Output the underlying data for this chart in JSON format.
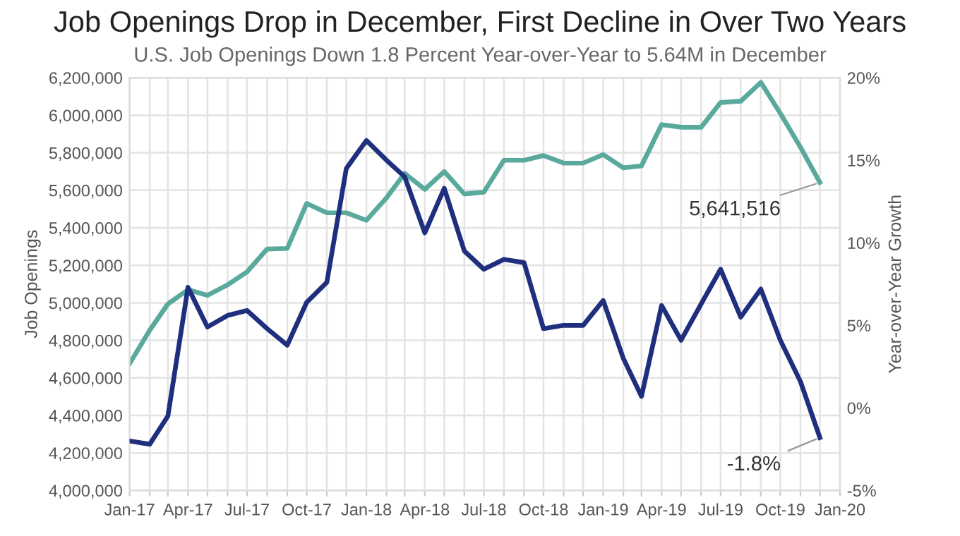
{
  "chart_data": {
    "type": "line",
    "title": "Job Openings Drop in December, First Decline in Over Two Years",
    "subtitle": "U.S. Job Openings Down 1.8 Percent Year-over-Year to 5.64M in December",
    "ylabel": "Job Openings",
    "y2label": "Year-over-Year Growth",
    "x": [
      "2017-01",
      "2017-02",
      "2017-03",
      "2017-04",
      "2017-05",
      "2017-06",
      "2017-07",
      "2017-08",
      "2017-09",
      "2017-10",
      "2017-11",
      "2017-12",
      "2018-01",
      "2018-02",
      "2018-03",
      "2018-04",
      "2018-05",
      "2018-06",
      "2018-07",
      "2018-08",
      "2018-09",
      "2018-10",
      "2018-11",
      "2018-12",
      "2019-01",
      "2019-02",
      "2019-03",
      "2019-04",
      "2019-05",
      "2019-06",
      "2019-07",
      "2019-08",
      "2019-09",
      "2019-10",
      "2019-11",
      "2019-12"
    ],
    "series": [
      {
        "color": "#5aa99d",
        "values": [
          4676000,
          4854000,
          4994000,
          5070000,
          5040000,
          5096000,
          5165000,
          5287000,
          5290000,
          5530000,
          5480000,
          5480000,
          5440000,
          5560000,
          5690000,
          5605000,
          5700000,
          5580000,
          5590000,
          5760000,
          5760000,
          5785000,
          5745000,
          5745000,
          5790000,
          5720000,
          5730000,
          5950000,
          5936000,
          5936000,
          6068000,
          6075000,
          6175000,
          6010000,
          5830000,
          5641516
        ],
        "value_labels": [
          null,
          null,
          null,
          null,
          null,
          null,
          null,
          null,
          null,
          null,
          null,
          null,
          null,
          null,
          null,
          null,
          null,
          null,
          null,
          null,
          null,
          null,
          null,
          null,
          null,
          null,
          null,
          null,
          null,
          null,
          null,
          null,
          null,
          null,
          null,
          "5,641,516"
        ]
      },
      {
        "color": "#1f2f7e",
        "axis": "y2",
        "values": [
          -2.0,
          -2.2,
          -0.5,
          7.3,
          4.9,
          5.6,
          5.9,
          4.8,
          3.8,
          6.4,
          7.6,
          14.5,
          16.2,
          15.0,
          14.0,
          10.6,
          13.3,
          9.5,
          8.4,
          9.0,
          8.8,
          4.8,
          5.0,
          5.0,
          6.5,
          3.0,
          0.7,
          6.2,
          4.1,
          6.3,
          8.4,
          5.5,
          7.2,
          4.1,
          1.6,
          -1.8
        ],
        "value_labels": [
          null,
          null,
          null,
          null,
          null,
          null,
          null,
          null,
          null,
          null,
          null,
          null,
          null,
          null,
          null,
          null,
          null,
          null,
          null,
          null,
          null,
          null,
          null,
          null,
          null,
          null,
          null,
          null,
          null,
          null,
          null,
          null,
          null,
          null,
          null,
          "-1.8%"
        ]
      }
    ],
    "xlim": [
      "2017-01",
      "2020-01"
    ],
    "xticks": [
      {
        "value": "2017-01",
        "label": "Jan-17"
      },
      {
        "value": "2017-02",
        "label": null
      },
      {
        "value": "2017-03",
        "label": null
      },
      {
        "value": "2017-04",
        "label": "Apr-17"
      },
      {
        "value": "2017-05",
        "label": null
      },
      {
        "value": "2017-06",
        "label": null
      },
      {
        "value": "2017-07",
        "label": "Jul-17"
      },
      {
        "value": "2017-08",
        "label": null
      },
      {
        "value": "2017-09",
        "label": null
      },
      {
        "value": "2017-10",
        "label": "Oct-17"
      },
      {
        "value": "2017-11",
        "label": null
      },
      {
        "value": "2017-12",
        "label": null
      },
      {
        "value": "2018-01",
        "label": "Jan-18"
      },
      {
        "value": "2018-02",
        "label": null
      },
      {
        "value": "2018-03",
        "label": null
      },
      {
        "value": "2018-04",
        "label": "Apr-18"
      },
      {
        "value": "2018-05",
        "label": null
      },
      {
        "value": "2018-06",
        "label": null
      },
      {
        "value": "2018-07",
        "label": "Jul-18"
      },
      {
        "value": "2018-08",
        "label": null
      },
      {
        "value": "2018-09",
        "label": null
      },
      {
        "value": "2018-10",
        "label": "Oct-18"
      },
      {
        "value": "2018-11",
        "label": null
      },
      {
        "value": "2018-12",
        "label": null
      },
      {
        "value": "2019-01",
        "label": "Jan-19"
      },
      {
        "value": "2019-02",
        "label": null
      },
      {
        "value": "2019-03",
        "label": null
      },
      {
        "value": "2019-04",
        "label": "Apr-19"
      },
      {
        "value": "2019-05",
        "label": null
      },
      {
        "value": "2019-06",
        "label": null
      },
      {
        "value": "2019-07",
        "label": "Jul-19"
      },
      {
        "value": "2019-08",
        "label": null
      },
      {
        "value": "2019-09",
        "label": null
      },
      {
        "value": "2019-10",
        "label": "Oct-19"
      },
      {
        "value": "2019-11",
        "label": null
      },
      {
        "value": "2019-12",
        "label": null
      },
      {
        "value": "2020-01",
        "label": "Jan-20"
      }
    ],
    "ylim": [
      4000000,
      6200000
    ],
    "yticks": [
      {
        "value": 4000000,
        "label": "4,000,000"
      },
      {
        "value": 4200000,
        "label": "4,200,000"
      },
      {
        "value": 4400000,
        "label": "4,400,000"
      },
      {
        "value": 4600000,
        "label": "4,600,000"
      },
      {
        "value": 4800000,
        "label": "4,800,000"
      },
      {
        "value": 5000000,
        "label": "5,000,000"
      },
      {
        "value": 5200000,
        "label": "5,200,000"
      },
      {
        "value": 5400000,
        "label": "5,400,000"
      },
      {
        "value": 5600000,
        "label": "5,600,000"
      },
      {
        "value": 5800000,
        "label": "5,800,000"
      },
      {
        "value": 6000000,
        "label": "6,000,000"
      },
      {
        "value": 6200000,
        "label": "6,200,000"
      }
    ],
    "y2lim": [
      -5,
      20
    ],
    "y2ticks": [
      {
        "value": -5,
        "label": "-5%"
      },
      {
        "value": 0,
        "label": "0%"
      },
      {
        "value": 5,
        "label": "5%"
      },
      {
        "value": 10,
        "label": "10%"
      },
      {
        "value": 15,
        "label": "15%"
      },
      {
        "value": 20,
        "label": "20%"
      }
    ],
    "grid": true,
    "marker": "none",
    "line_style": "solid"
  }
}
